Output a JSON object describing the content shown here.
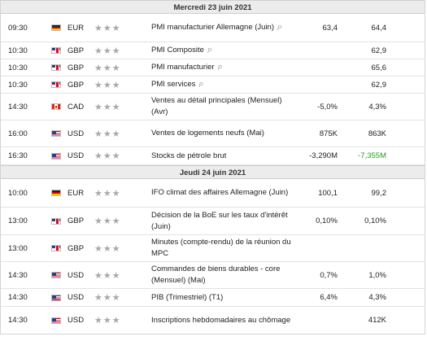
{
  "days": [
    {
      "title": "Mercredi 23 juin 2021",
      "events": [
        {
          "time": "09:30",
          "flag": "de",
          "flag_icon": "flag-germany-icon",
          "currency": "EUR",
          "event": "PMI manufacturier Allemagne (Juin)",
          "prelim": "P",
          "actual": "63,4",
          "forecast": "64,4",
          "previous": "",
          "h": 35
        },
        {
          "time": "10:30",
          "flag": "gb",
          "flag_icon": "flag-uk-icon",
          "currency": "GBP",
          "event": "PMI Composite",
          "prelim": "P",
          "actual": "",
          "forecast": "62,9",
          "previous": "",
          "h": 21
        },
        {
          "time": "10:30",
          "flag": "gb",
          "flag_icon": "flag-uk-icon",
          "currency": "GBP",
          "event": "PMI manufacturier",
          "prelim": "P",
          "actual": "",
          "forecast": "65,6",
          "previous": "",
          "h": 21
        },
        {
          "time": "10:30",
          "flag": "gb",
          "flag_icon": "flag-uk-icon",
          "currency": "GBP",
          "event": "PMI services",
          "prelim": "P",
          "actual": "",
          "forecast": "62,9",
          "previous": "",
          "h": 21
        },
        {
          "time": "14:30",
          "flag": "ca",
          "flag_icon": "flag-canada-icon",
          "currency": "CAD",
          "event": "Ventes au détail principales (Mensuel) (Avr)",
          "prelim": "",
          "actual": "-5,0%",
          "forecast": "4,3%",
          "previous": "",
          "h": 33
        },
        {
          "time": "16:00",
          "flag": "us",
          "flag_icon": "flag-usa-icon",
          "currency": "USD",
          "event": "Ventes de logements neufs (Mai)",
          "prelim": "",
          "actual": "875K",
          "forecast": "863K",
          "previous": "",
          "h": 33
        },
        {
          "time": "16:30",
          "flag": "us",
          "flag_icon": "flag-usa-icon",
          "currency": "USD",
          "event": "Stocks de pétrole brut",
          "prelim": "",
          "actual": "-3,290M",
          "forecast": "-7,355M",
          "forecast_color": "#23a01f",
          "previous": "",
          "h": 22
        }
      ]
    },
    {
      "title": "Jeudi 24 juin 2021",
      "events": [
        {
          "time": "10:00",
          "flag": "de",
          "flag_icon": "flag-germany-icon",
          "currency": "EUR",
          "event": "IFO climat des affaires Allemagne (Juin)",
          "prelim": "",
          "actual": "100,1",
          "forecast": "99,2",
          "previous": "",
          "h": 35
        },
        {
          "time": "13:00",
          "flag": "gb",
          "flag_icon": "flag-uk-icon",
          "currency": "GBP",
          "event": "Décision de la BoE sur les taux d'intérêt (Juin)",
          "prelim": "",
          "actual": "0,10%",
          "forecast": "0,10%",
          "previous": "",
          "h": 34
        },
        {
          "time": "13:00",
          "flag": "gb",
          "flag_icon": "flag-uk-icon",
          "currency": "GBP",
          "event": "Minutes (compte-rendu) de la réunion du MPC",
          "prelim": "",
          "actual": "",
          "forecast": "",
          "previous": "",
          "h": 33
        },
        {
          "time": "14:30",
          "flag": "us",
          "flag_icon": "flag-usa-icon",
          "currency": "USD",
          "event": "Commandes de biens durables - core (Mensuel) (Mai)",
          "prelim": "",
          "actual": "0,7%",
          "forecast": "1,0%",
          "previous": "",
          "h": 33
        },
        {
          "time": "14:30",
          "flag": "us",
          "flag_icon": "flag-usa-icon",
          "currency": "USD",
          "event": "PIB (Trimestriel) (T1)",
          "prelim": "",
          "actual": "6,4%",
          "forecast": "4,3%",
          "previous": "",
          "h": 22
        },
        {
          "time": "14:30",
          "flag": "us",
          "flag_icon": "flag-usa-icon",
          "currency": "USD",
          "event": "Inscriptions hebdomadaires au chômage",
          "prelim": "",
          "actual": "",
          "forecast": "412K",
          "previous": "",
          "h": 33
        }
      ]
    }
  ],
  "importance_stars": 3,
  "star_icon": "star-icon",
  "prelim_icon": "preliminary-icon"
}
